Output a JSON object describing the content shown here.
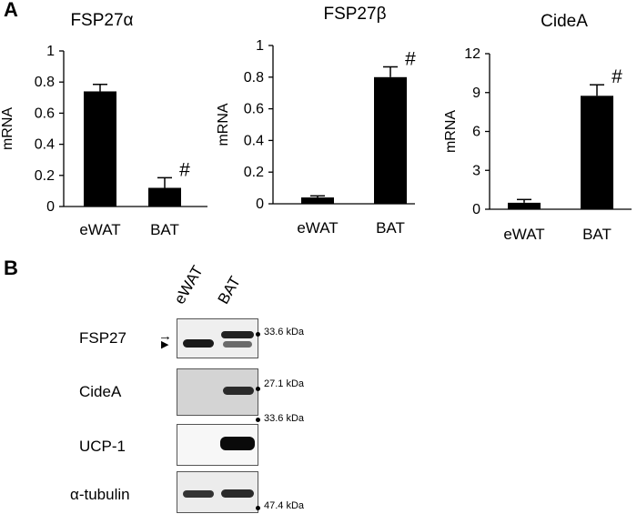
{
  "panels": {
    "a": "A",
    "b": "B"
  },
  "chart_data": [
    {
      "type": "bar",
      "title": "FSP27α",
      "ylabel": "mRNA",
      "xlabel": "",
      "categories": [
        "eWAT",
        "BAT"
      ],
      "values": [
        0.74,
        0.12
      ],
      "errors": [
        0.045,
        0.065
      ],
      "ylim": [
        0,
        1
      ],
      "yticks": [
        0,
        0.2,
        0.4,
        0.6,
        0.8,
        1
      ],
      "ytick_labels": [
        "0",
        "0.2",
        "0.4",
        "0.6",
        "0.8",
        "1"
      ],
      "annotations": [
        {
          "category": "BAT",
          "text": "#"
        }
      ],
      "grid": false
    },
    {
      "type": "bar",
      "title": "FSP27β",
      "ylabel": "mRNA",
      "xlabel": "",
      "categories": [
        "eWAT",
        "BAT"
      ],
      "values": [
        0.04,
        0.8
      ],
      "errors": [
        0.01,
        0.065
      ],
      "ylim": [
        0,
        1
      ],
      "yticks": [
        0,
        0.2,
        0.4,
        0.6,
        0.8,
        1
      ],
      "ytick_labels": [
        "0",
        "0.2",
        "0.4",
        "0.6",
        "0.8",
        "1"
      ],
      "annotations": [
        {
          "category": "BAT",
          "text": "#"
        }
      ],
      "grid": false
    },
    {
      "type": "bar",
      "title": "CideA",
      "ylabel": "mRNA",
      "xlabel": "",
      "categories": [
        "eWAT",
        "BAT"
      ],
      "values": [
        0.5,
        8.75
      ],
      "errors": [
        0.25,
        0.85
      ],
      "ylim": [
        0,
        12
      ],
      "yticks": [
        0,
        3,
        6,
        9,
        12
      ],
      "ytick_labels": [
        "0",
        "3",
        "6",
        "9",
        "12"
      ],
      "annotations": [
        {
          "category": "BAT",
          "text": "#"
        }
      ],
      "grid": false
    }
  ],
  "western_blot": {
    "lanes": [
      "eWAT",
      "BAT"
    ],
    "rows": [
      {
        "label": "FSP27",
        "marker": "33.6 kDa"
      },
      {
        "label": "CideA",
        "marker": "27.1 kDa"
      },
      {
        "label": "UCP-1",
        "marker": "33.6 kDa"
      },
      {
        "label": "α-tubulin",
        "marker": "47.4 kDa"
      }
    ]
  }
}
